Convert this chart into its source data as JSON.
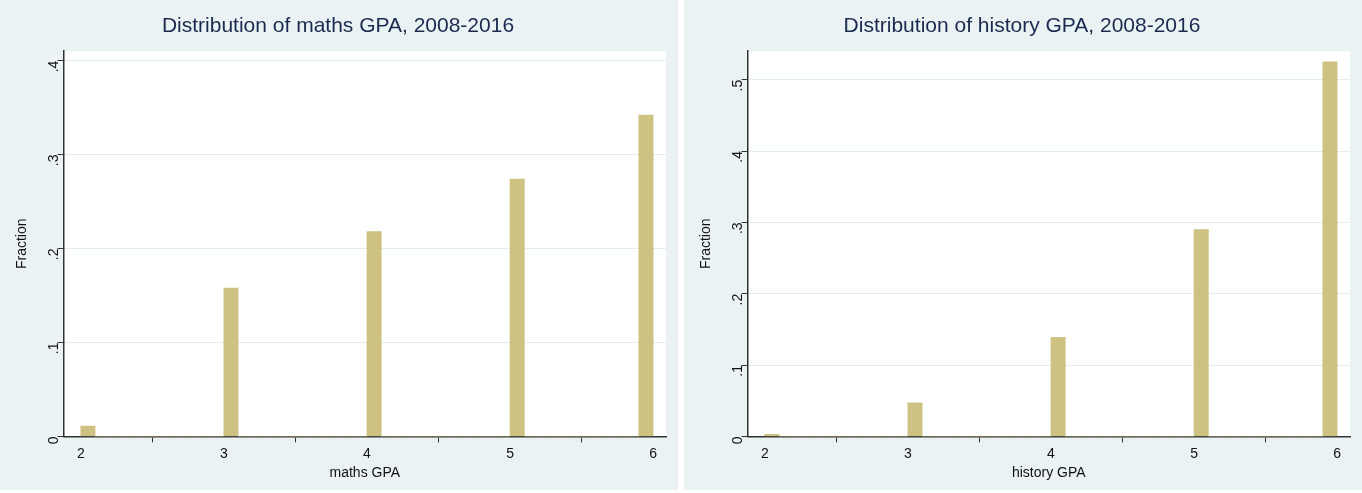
{
  "chart_data": [
    {
      "type": "histogram",
      "title": "Distribution of maths GPA, 2008-2016",
      "xlabel": "maths GPA",
      "ylabel": "Fraction",
      "color": "#cdc281",
      "bins": [
        2,
        2.1,
        2.2,
        2.3,
        2.4,
        2.5,
        2.6,
        2.7,
        2.8,
        2.9,
        3,
        3.1,
        3.2,
        3.3,
        3.4,
        3.5,
        3.6,
        3.7,
        3.8,
        3.9,
        4,
        4.1,
        4.2,
        4.3,
        4.4,
        4.5,
        4.6,
        4.7,
        4.8,
        4.9,
        5,
        5.1,
        5.2,
        5.3,
        5.4,
        5.5,
        5.6,
        5.7,
        5.8,
        5.9,
        6
      ],
      "values": [
        0.011,
        0,
        0,
        0,
        0,
        0,
        0,
        0,
        0,
        0,
        0.158,
        0,
        0,
        0,
        0,
        0,
        0,
        0,
        0,
        0,
        0.218,
        0,
        0,
        0,
        0,
        0,
        0,
        0,
        0,
        0,
        0.274,
        0,
        0,
        0,
        0,
        0,
        0,
        0,
        0,
        0.342
      ],
      "xlim": [
        1.88,
        6.09
      ],
      "xticks": [
        2,
        3,
        4,
        5,
        6
      ],
      "ylim": [
        0,
        0.41
      ],
      "yticks": [
        {
          "value": 0,
          "label": "0"
        },
        {
          "value": 0.1,
          "label": ".1"
        },
        {
          "value": 0.2,
          "label": ".2"
        },
        {
          "value": 0.3,
          "label": ".3"
        },
        {
          "value": 0.4,
          "label": ".4"
        }
      ],
      "grid": "y"
    },
    {
      "type": "histogram",
      "title": "Distribution of history GPA, 2008-2016",
      "xlabel": "history GPA",
      "ylabel": "Fraction",
      "color": "#cdc281",
      "bins": [
        2,
        2.1,
        2.2,
        2.3,
        2.4,
        2.5,
        2.6,
        2.7,
        2.8,
        2.9,
        3,
        3.1,
        3.2,
        3.3,
        3.4,
        3.5,
        3.6,
        3.7,
        3.8,
        3.9,
        4,
        4.1,
        4.2,
        4.3,
        4.4,
        4.5,
        4.6,
        4.7,
        4.8,
        4.9,
        5,
        5.1,
        5.2,
        5.3,
        5.4,
        5.5,
        5.6,
        5.7,
        5.8,
        5.9,
        6
      ],
      "values": [
        0.003,
        0,
        0,
        0,
        0,
        0,
        0,
        0,
        0,
        0,
        0.047,
        0,
        0,
        0,
        0,
        0,
        0,
        0,
        0,
        0,
        0.139,
        0,
        0,
        0,
        0,
        0,
        0,
        0,
        0,
        0,
        0.29,
        0,
        0,
        0,
        0,
        0,
        0,
        0,
        0,
        0.525
      ],
      "xlim": [
        1.88,
        6.09
      ],
      "xticks": [
        2,
        3,
        4,
        5,
        6
      ],
      "ylim": [
        0,
        0.54
      ],
      "yticks": [
        {
          "value": 0,
          "label": "0"
        },
        {
          "value": 0.1,
          "label": ".1"
        },
        {
          "value": 0.2,
          "label": ".2"
        },
        {
          "value": 0.3,
          "label": ".3"
        },
        {
          "value": 0.4,
          "label": ".4"
        },
        {
          "value": 0.5,
          "label": ".5"
        }
      ],
      "grid": "y"
    }
  ]
}
